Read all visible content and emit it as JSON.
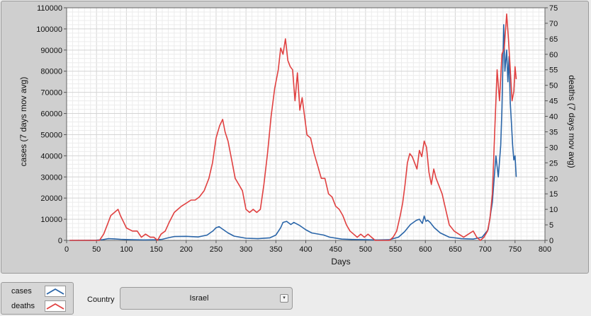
{
  "legend": {
    "items": [
      {
        "label": "cases",
        "color": "#2a65a8"
      },
      {
        "label": "deaths",
        "color": "#e04040"
      }
    ]
  },
  "country": {
    "label": "Country",
    "value": "Israel"
  },
  "chart_data": {
    "type": "line",
    "title": "",
    "xlabel": "Days",
    "ylabel": "cases  (7 days mov avg)",
    "y2label": "deaths  (7 days mov avg)",
    "xlim": [
      0,
      800
    ],
    "ylim": [
      0,
      110000
    ],
    "y2lim": [
      0,
      75
    ],
    "xticks": [
      0,
      50,
      100,
      150,
      200,
      250,
      300,
      350,
      400,
      450,
      500,
      550,
      600,
      650,
      700,
      750,
      800
    ],
    "yticks": [
      0,
      10000,
      20000,
      30000,
      40000,
      50000,
      60000,
      70000,
      80000,
      90000,
      100000,
      110000
    ],
    "y2ticks": [
      0,
      5,
      10,
      15,
      20,
      25,
      30,
      35,
      40,
      45,
      50,
      55,
      60,
      65,
      70,
      75
    ],
    "grid": true,
    "series": [
      {
        "name": "cases",
        "axis": "left",
        "color": "#2a65a8",
        "x": [
          5,
          50,
          60,
          70,
          80,
          90,
          100,
          110,
          130,
          150,
          160,
          170,
          180,
          200,
          220,
          235,
          245,
          250,
          255,
          260,
          270,
          280,
          300,
          320,
          340,
          350,
          358,
          362,
          368,
          375,
          380,
          390,
          400,
          410,
          420,
          430,
          440,
          460,
          480,
          500,
          520,
          540,
          555,
          565,
          575,
          585,
          590,
          595,
          598,
          601,
          604,
          608,
          615,
          625,
          640,
          660,
          680,
          695,
          705,
          712,
          718,
          722,
          726,
          728,
          731,
          733,
          736,
          738,
          740,
          742,
          744,
          746,
          748,
          750,
          752
        ],
        "y": [
          0,
          100,
          300,
          800,
          700,
          500,
          400,
          300,
          200,
          300,
          500,
          1200,
          1800,
          1900,
          1600,
          2500,
          4500,
          6000,
          6500,
          5500,
          3500,
          2000,
          1000,
          800,
          1200,
          2500,
          6000,
          8500,
          9000,
          7500,
          8500,
          7000,
          5000,
          3500,
          3000,
          2500,
          1500,
          600,
          400,
          300,
          200,
          300,
          1500,
          4000,
          7500,
          9500,
          10000,
          8000,
          11500,
          9000,
          9500,
          8500,
          6000,
          3500,
          1500,
          800,
          600,
          1500,
          5000,
          18000,
          40000,
          30000,
          45000,
          62000,
          102000,
          80000,
          90000,
          75000,
          87000,
          65000,
          55000,
          45000,
          38000,
          40000,
          30000
        ]
      },
      {
        "name": "deaths",
        "axis": "right",
        "color": "#e04040",
        "x": [
          5,
          55,
          62,
          68,
          74,
          80,
          86,
          90,
          95,
          100,
          110,
          118,
          125,
          132,
          140,
          146,
          152,
          158,
          165,
          172,
          180,
          186,
          192,
          200,
          208,
          215,
          222,
          230,
          238,
          244,
          250,
          256,
          261,
          265,
          270,
          276,
          282,
          288,
          294,
          300,
          306,
          312,
          318,
          324,
          330,
          336,
          342,
          348,
          354,
          358,
          362,
          366,
          370,
          374,
          378,
          382,
          386,
          390,
          394,
          398,
          402,
          408,
          414,
          420,
          426,
          432,
          438,
          444,
          450,
          456,
          462,
          468,
          474,
          480,
          486,
          492,
          498,
          504,
          510,
          516,
          522,
          528,
          534,
          540,
          546,
          552,
          558,
          562,
          566,
          570,
          574,
          578,
          582,
          586,
          590,
          594,
          598,
          602,
          606,
          610,
          614,
          618,
          622,
          628,
          634,
          640,
          648,
          656,
          664,
          672,
          680,
          686,
          692,
          698,
          704,
          708,
          712,
          716,
          720,
          724,
          728,
          732,
          736,
          739,
          742,
          745,
          748,
          750,
          752
        ],
        "y": [
          0,
          0,
          2,
          5,
          8,
          9,
          10,
          8,
          6,
          4,
          3,
          3,
          1,
          2,
          1,
          1,
          0,
          2,
          3,
          6,
          9,
          10,
          11,
          12,
          13,
          13,
          14,
          16,
          20,
          25,
          33,
          37,
          39,
          35,
          32,
          26,
          20,
          18,
          16,
          10,
          9,
          10,
          9,
          10,
          18,
          28,
          40,
          49,
          55,
          62,
          60,
          65,
          58,
          56,
          55,
          45,
          54,
          42,
          46,
          40,
          34,
          33,
          28,
          24,
          20,
          20,
          15,
          14,
          11,
          10,
          8,
          5,
          3,
          2,
          1,
          2,
          1,
          2,
          1,
          0,
          0,
          0,
          0,
          0,
          1,
          3,
          8,
          12,
          18,
          25,
          28,
          27,
          25,
          23,
          29,
          27,
          32,
          30,
          22,
          18,
          23,
          20,
          18,
          15,
          10,
          5,
          3,
          2,
          1,
          2,
          3,
          1,
          0,
          1,
          3,
          7,
          15,
          35,
          55,
          45,
          60,
          62,
          73,
          65,
          55,
          45,
          48,
          56,
          52
        ]
      }
    ]
  }
}
